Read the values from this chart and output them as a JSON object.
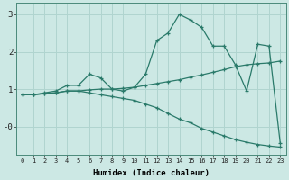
{
  "xlabel": "Humidex (Indice chaleur)",
  "xlim": [
    -0.5,
    23.5
  ],
  "ylim": [
    -0.75,
    3.3
  ],
  "bg_color": "#cce8e4",
  "grid_color": "#b0d4cf",
  "line_color": "#2a7a6a",
  "xticks": [
    0,
    1,
    2,
    3,
    4,
    5,
    6,
    7,
    8,
    9,
    10,
    11,
    12,
    13,
    14,
    15,
    16,
    17,
    18,
    19,
    20,
    21,
    22,
    23
  ],
  "yticks": [
    0,
    1,
    2,
    3
  ],
  "ytick_labels": [
    "-0",
    "1",
    "2",
    "3"
  ],
  "series": [
    [
      0.85,
      0.85,
      0.9,
      0.95,
      1.1,
      1.1,
      1.4,
      1.3,
      1.0,
      0.95,
      1.05,
      1.4,
      2.3,
      2.5,
      3.0,
      2.85,
      2.65,
      2.15,
      2.15,
      1.65,
      0.95,
      2.2,
      2.15,
      -0.45
    ],
    [
      0.85,
      0.85,
      0.88,
      0.9,
      0.95,
      0.95,
      0.9,
      0.85,
      0.8,
      0.75,
      0.7,
      0.6,
      0.5,
      0.35,
      0.2,
      0.1,
      -0.05,
      -0.15,
      -0.25,
      -0.35,
      -0.42,
      -0.48,
      -0.52,
      -0.55
    ],
    [
      0.85,
      0.85,
      0.88,
      0.9,
      0.95,
      0.95,
      0.98,
      1.0,
      1.0,
      1.02,
      1.05,
      1.1,
      1.15,
      1.2,
      1.25,
      1.32,
      1.38,
      1.45,
      1.52,
      1.6,
      1.65,
      1.68,
      1.7,
      1.75
    ]
  ]
}
